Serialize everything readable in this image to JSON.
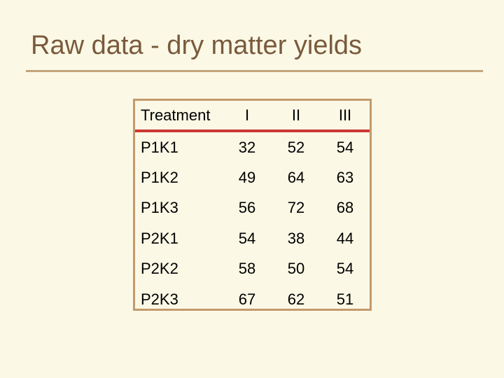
{
  "title": "Raw data - dry matter yields",
  "table": {
    "headers": [
      "Treatment",
      "I",
      "II",
      "III"
    ],
    "rows": [
      [
        "P1K1",
        "32",
        "52",
        "54"
      ],
      [
        "P1K2",
        "49",
        "64",
        "63"
      ],
      [
        "P1K3",
        "56",
        "72",
        "68"
      ],
      [
        "P2K1",
        "54",
        "38",
        "44"
      ],
      [
        "P2K2",
        "58",
        "50",
        "54"
      ],
      [
        "P2K3",
        "67",
        "62",
        "51"
      ]
    ]
  },
  "colors": {
    "background": "#fbf8e6",
    "title": "#7a5a3c",
    "rule": "#c4a47c",
    "table_border": "#c49a6c",
    "header_underline": "#cc3a34"
  }
}
